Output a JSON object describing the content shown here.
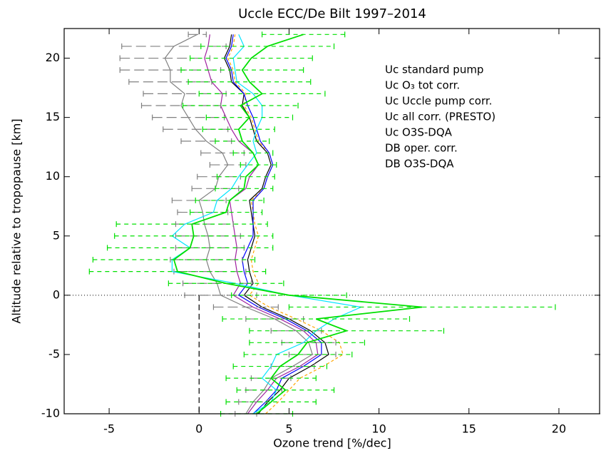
{
  "chart_data": {
    "type": "line",
    "title": "Uccle ECC/De Bilt 1997–2014",
    "x_label": "Ozone trend [%/dec]",
    "y_label": "Altitude relative to tropopause [km]",
    "xlim": [
      -7.5,
      22.3
    ],
    "ylim": [
      -10,
      22.5
    ],
    "xticks": [
      -5,
      0,
      5,
      10,
      15,
      20
    ],
    "yticks": [
      -10,
      -5,
      0,
      5,
      10,
      15,
      20
    ],
    "y": [
      -10,
      -9,
      -8,
      -7,
      -6,
      -5,
      -4,
      -3,
      -2,
      -1,
      0,
      1,
      2,
      3,
      4,
      5,
      6,
      7,
      8,
      9,
      10,
      11,
      12,
      13,
      14,
      15,
      16,
      17,
      18,
      19,
      20,
      21,
      22
    ],
    "series": [
      {
        "name": "Uc standard pump",
        "color": "#a020a0",
        "linestyle": "solid",
        "values": [
          2.7,
          3.2,
          3.8,
          4.3,
          5.6,
          6.6,
          6.5,
          5.8,
          4.5,
          3.0,
          1.9,
          2.3,
          2.1,
          2.0,
          2.1,
          2.0,
          1.9,
          1.8,
          1.7,
          2.6,
          2.8,
          3.3,
          3.0,
          2.2,
          1.8,
          1.5,
          1.2,
          1.3,
          0.7,
          0.5,
          0.3,
          0.5,
          0.6
        ]
      },
      {
        "name": "Uc O₃ tot corr.",
        "color": "#ffa500",
        "linestyle": "dashed",
        "values": [
          3.7,
          4.4,
          5.0,
          5.6,
          6.9,
          8.0,
          7.8,
          6.8,
          5.4,
          3.9,
          2.8,
          3.3,
          3.0,
          2.9,
          3.1,
          3.3,
          3.1,
          3.0,
          2.9,
          3.6,
          3.8,
          4.1,
          3.9,
          3.3,
          3.1,
          2.9,
          2.5,
          2.6,
          2.0,
          1.9,
          1.6,
          1.9,
          2.0
        ]
      },
      {
        "name": "Uc Uccle pump corr.",
        "color": "#000000",
        "linestyle": "solid",
        "values": [
          3.3,
          3.8,
          4.5,
          5.0,
          6.2,
          7.2,
          7.0,
          6.2,
          5.0,
          3.5,
          2.5,
          3.0,
          2.8,
          2.7,
          2.9,
          3.1,
          3.0,
          2.9,
          2.8,
          3.5,
          3.7,
          4.0,
          3.8,
          3.2,
          3.0,
          2.8,
          2.4,
          2.5,
          1.8,
          1.7,
          1.4,
          1.7,
          1.8
        ]
      },
      {
        "name": "Uc all corr. (PRESTO)",
        "color": "#0000ff",
        "linestyle": "solid",
        "values": [
          3.0,
          3.7,
          4.3,
          4.6,
          5.8,
          6.8,
          6.8,
          6.0,
          4.8,
          3.3,
          2.2,
          2.7,
          2.5,
          2.4,
          2.7,
          3.0,
          3.0,
          3.0,
          3.0,
          3.6,
          3.8,
          4.1,
          3.9,
          3.4,
          3.2,
          3.0,
          2.7,
          2.5,
          1.9,
          1.8,
          1.5,
          1.8,
          1.9
        ]
      },
      {
        "name": "Uc O3S-DQA",
        "color": "#808080",
        "linestyle": "solid",
        "values": [
          2.6,
          3.0,
          3.6,
          4.0,
          5.2,
          6.3,
          6.1,
          5.4,
          4.2,
          2.6,
          1.2,
          1.0,
          0.6,
          0.4,
          0.6,
          0.5,
          0.3,
          0.2,
          0.0,
          0.9,
          1.1,
          1.6,
          1.3,
          0.4,
          -0.2,
          -0.6,
          -1.0,
          -0.8,
          -1.6,
          -1.6,
          -1.9,
          -1.4,
          -0.1
        ],
        "errors": [
          0.6,
          0.8,
          1.0,
          1.1,
          1.2,
          1.3,
          1.5,
          1.4,
          1.6,
          1.8,
          2.0,
          1.9,
          2.0,
          2.0,
          1.9,
          1.8,
          1.6,
          1.4,
          1.5,
          1.3,
          1.2,
          1.0,
          1.2,
          1.4,
          1.8,
          2.0,
          2.2,
          2.3,
          2.3,
          2.8,
          2.5,
          2.9,
          0.5
        ]
      },
      {
        "name": "DB oper. corr.",
        "color": "#00e5ff",
        "linestyle": "solid",
        "values": [
          3.0,
          4.0,
          4.3,
          3.5,
          4.0,
          4.3,
          5.8,
          6.5,
          7.5,
          9.0,
          5.0,
          2.0,
          -1.5,
          -1.5,
          -0.5,
          -1.5,
          -0.8,
          0.8,
          1.0,
          1.8,
          2.2,
          2.7,
          3.2,
          3.0,
          3.2,
          3.5,
          3.5,
          3.0,
          2.1,
          2.0,
          1.9,
          2.5,
          2.2
        ]
      },
      {
        "name": "DB O3S-DQA",
        "color": "#00e000",
        "linestyle": "solid",
        "values": [
          3.2,
          4.0,
          4.8,
          4.0,
          4.5,
          5.5,
          6.0,
          8.2,
          6.5,
          12.4,
          5.0,
          1.5,
          -1.2,
          -1.4,
          -0.5,
          -0.3,
          -0.4,
          1.5,
          1.7,
          2.5,
          2.6,
          3.3,
          3.0,
          2.4,
          2.2,
          2.8,
          2.3,
          3.5,
          2.8,
          2.4,
          2.9,
          3.8,
          5.8
        ],
        "errors": [
          2.0,
          2.5,
          2.7,
          2.5,
          2.6,
          3.0,
          3.2,
          5.4,
          5.2,
          7.4,
          3.2,
          3.2,
          4.9,
          4.5,
          4.6,
          4.4,
          4.2,
          2.0,
          1.9,
          1.6,
          1.6,
          1.0,
          1.1,
          1.5,
          2.0,
          2.4,
          3.2,
          3.5,
          3.4,
          3.4,
          3.4,
          3.7,
          2.3
        ]
      }
    ]
  }
}
